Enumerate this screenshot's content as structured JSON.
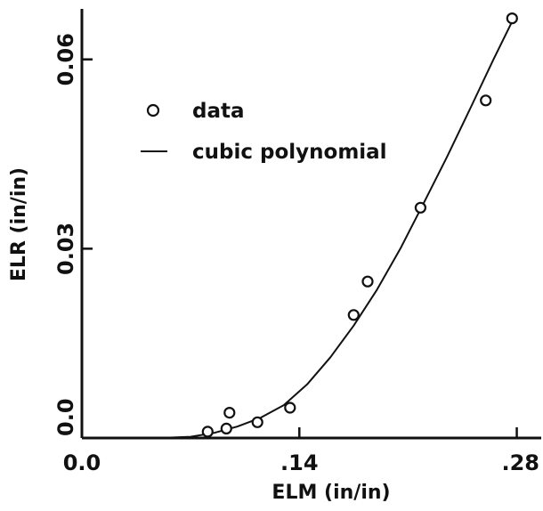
{
  "chart_data": {
    "type": "scatter",
    "xlabel": "ELM (in/in)",
    "ylabel": "ELR (in/in)",
    "xlim": [
      0.0,
      0.29
    ],
    "ylim": [
      0.0,
      0.068
    ],
    "x_ticks": [
      0.0,
      0.14,
      0.28
    ],
    "x_tick_labels": [
      "0.0",
      ".14",
      ".28"
    ],
    "y_ticks": [
      0.0,
      0.03,
      0.06
    ],
    "y_tick_labels": [
      "0.0",
      "0.03",
      "0.06"
    ],
    "grid": false,
    "legend_position": "top-left",
    "series": [
      {
        "name": "data",
        "kind": "markers",
        "marker": "open-circle",
        "x": [
          0.081,
          0.093,
          0.095,
          0.113,
          0.134,
          0.175,
          0.184,
          0.218,
          0.26,
          0.277
        ],
        "y": [
          0.001,
          0.0015,
          0.004,
          0.0025,
          0.0048,
          0.0195,
          0.0248,
          0.0365,
          0.0535,
          0.0665
        ]
      },
      {
        "name": "cubic polynomial",
        "kind": "line",
        "x": [
          0.0,
          0.05,
          0.07,
          0.085,
          0.1,
          0.115,
          0.13,
          0.145,
          0.16,
          0.175,
          0.19,
          0.205,
          0.22,
          0.235,
          0.25,
          0.265,
          0.278
        ],
        "y": [
          0.0,
          0.0,
          0.0002,
          0.0008,
          0.0018,
          0.0032,
          0.0052,
          0.0085,
          0.0128,
          0.0178,
          0.0235,
          0.03,
          0.0372,
          0.0445,
          0.0522,
          0.06,
          0.0665
        ]
      }
    ]
  }
}
